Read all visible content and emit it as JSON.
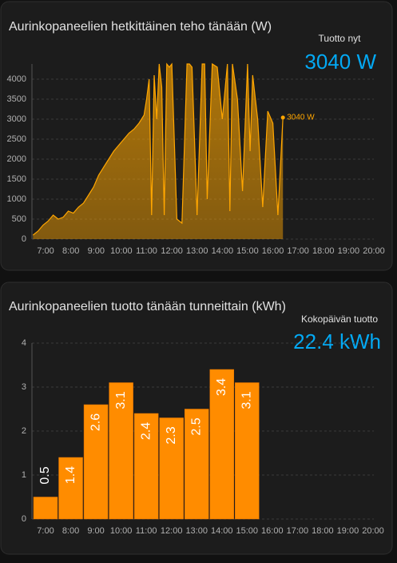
{
  "chart_data": [
    {
      "type": "line",
      "title": "Aurinkopaneelien hetkittäinen teho tänään (W)",
      "stat": {
        "label": "Tuotto nyt",
        "text": "3040 W"
      },
      "x": [
        6.5,
        6.7,
        6.9,
        7.1,
        7.3,
        7.5,
        7.7,
        7.9,
        8.1,
        8.3,
        8.5,
        8.7,
        8.9,
        9.1,
        9.3,
        9.5,
        9.7,
        9.9,
        10.1,
        10.3,
        10.5,
        10.7,
        10.9,
        11.0,
        11.1,
        11.2,
        11.3,
        11.4,
        11.5,
        11.6,
        11.7,
        11.8,
        11.9,
        12.0,
        12.2,
        12.4,
        12.6,
        12.7,
        12.8,
        13.0,
        13.2,
        13.3,
        13.4,
        13.6,
        13.8,
        14.0,
        14.2,
        14.3,
        14.4,
        14.6,
        14.8,
        15.0,
        15.1,
        15.2,
        15.4,
        15.6,
        15.8,
        16.0,
        16.2,
        16.4
      ],
      "series": [
        {
          "color": "#ffa600",
          "values": [
            100,
            200,
            350,
            450,
            600,
            500,
            550,
            700,
            650,
            800,
            900,
            1100,
            1300,
            1600,
            1800,
            2000,
            2200,
            2350,
            2500,
            2650,
            2750,
            2900,
            3100,
            3500,
            4000,
            600,
            4100,
            3000,
            4380,
            3800,
            600,
            4380,
            4300,
            4380,
            500,
            400,
            4380,
            4380,
            4300,
            600,
            4380,
            4380,
            1000,
            4380,
            4300,
            3000,
            4380,
            700,
            4380,
            3500,
            1200,
            4380,
            2200,
            4100,
            3000,
            800,
            3200,
            2900,
            600,
            3040
          ]
        }
      ],
      "xlim": [
        6.46,
        20
      ],
      "xticks": [
        {
          "value": 7,
          "label": "7:00"
        },
        {
          "value": 8,
          "label": "8:00"
        },
        {
          "value": 9,
          "label": "9:00"
        },
        {
          "value": 10,
          "label": "10:00"
        },
        {
          "value": 11,
          "label": "11:00"
        },
        {
          "value": 12,
          "label": "12:00"
        },
        {
          "value": 13,
          "label": "13:00"
        },
        {
          "value": 14,
          "label": "14:00"
        },
        {
          "value": 15,
          "label": "15:00"
        },
        {
          "value": 16,
          "label": "16:00"
        },
        {
          "value": 17,
          "label": "17:00"
        },
        {
          "value": 18,
          "label": "18:00"
        },
        {
          "value": 19,
          "label": "19:00"
        },
        {
          "value": 20,
          "label": "20:00"
        }
      ],
      "ylim": [
        0,
        4380
      ],
      "yticks": [
        0,
        500,
        1000,
        1500,
        2000,
        2500,
        3000,
        3500,
        4000
      ],
      "grid": true
    },
    {
      "type": "bar",
      "title": "Aurinkopaneelien tuotto tänään tunneittain (kWh)",
      "stat": {
        "label": "Kokopäivän tuotto",
        "text": "22.4 kWh"
      },
      "categories": [
        "7:00",
        "8:00",
        "9:00",
        "10:00",
        "11:00",
        "12:00",
        "13:00",
        "14:00",
        "15:00",
        "16:00",
        "17:00",
        "18:00",
        "19:00",
        "20:00"
      ],
      "values": [
        0.5,
        1.4,
        2.6,
        3.1,
        2.4,
        2.3,
        2.5,
        3.4,
        3.1,
        null,
        null,
        null,
        null,
        null
      ],
      "color": "#ff8c00",
      "ylim": [
        0,
        4
      ],
      "yticks": [
        0,
        1,
        2,
        3,
        4
      ],
      "grid": true
    }
  ]
}
